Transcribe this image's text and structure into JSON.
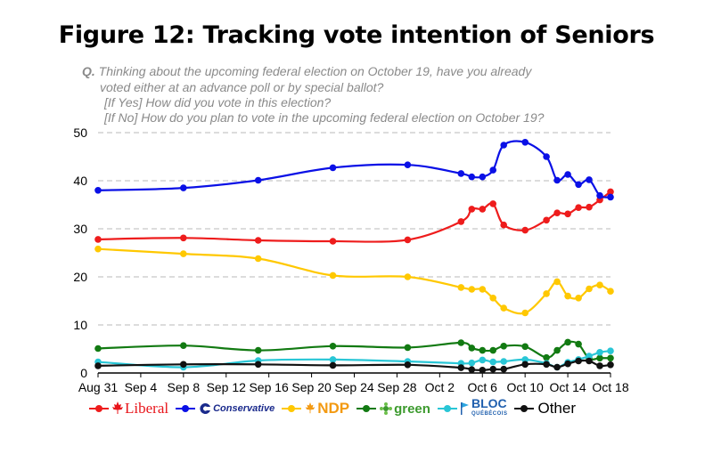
{
  "title": "Figure 12: Tracking vote intention of Seniors",
  "question": {
    "q_label": "Q.",
    "line1": "Thinking about the upcoming federal election on October 19, have you already",
    "line2": "voted either at an advance poll or by special ballot?",
    "line3": "[If Yes] How did you vote in this election?",
    "line4": "[If No] How do you plan to vote in the upcoming federal election on October 19?"
  },
  "legend": {
    "liberal": "Liberal",
    "conservative": "Conservative",
    "ndp": "NDP",
    "green": "green",
    "bloc": "BLOC",
    "bloc_sub": "QUÉBÉCOIS",
    "other": "Other"
  },
  "chart_data": {
    "type": "line",
    "title": "Figure 12: Tracking vote intention of Seniors",
    "xlabel": "",
    "ylabel": "",
    "x_tick_labels": [
      "Aug 31",
      "Sep 4",
      "Sep 8",
      "Sep 12",
      "Sep 16",
      "Sep 20",
      "Sep 24",
      "Sep 28",
      "Oct 2",
      "Oct 6",
      "Oct 10",
      "Oct 14",
      "Oct 18"
    ],
    "x_ticks": [
      "2015-08-31",
      "2015-09-04",
      "2015-09-08",
      "2015-09-12",
      "2015-09-16",
      "2015-09-20",
      "2015-09-24",
      "2015-09-28",
      "2015-10-02",
      "2015-10-06",
      "2015-10-10",
      "2015-10-14",
      "2015-10-18"
    ],
    "x_range": [
      "2015-08-31",
      "2015-10-18"
    ],
    "ylim": [
      0,
      50
    ],
    "y_ticks": [
      0,
      10,
      20,
      30,
      40,
      50
    ],
    "grid": "horizontal dashed",
    "legend_position": "bottom",
    "x": [
      "2015-08-31",
      "2015-09-08",
      "2015-09-15",
      "2015-09-22",
      "2015-09-29",
      "2015-10-04",
      "2015-10-05",
      "2015-10-06",
      "2015-10-07",
      "2015-10-08",
      "2015-10-10",
      "2015-10-12",
      "2015-10-13",
      "2015-10-14",
      "2015-10-15",
      "2015-10-16",
      "2015-10-17",
      "2015-10-18"
    ],
    "series": [
      {
        "name": "Liberal",
        "color": "#ee1c1c",
        "values": [
          27.8,
          28.1,
          27.6,
          27.4,
          27.7,
          31.5,
          34.1,
          34.1,
          35.2,
          30.8,
          29.7,
          31.8,
          33.3,
          33.1,
          34.4,
          34.5,
          36.0,
          37.7
        ]
      },
      {
        "name": "Conservative",
        "color": "#0a10e6",
        "values": [
          38.0,
          38.5,
          40.1,
          42.7,
          43.3,
          41.5,
          40.8,
          40.8,
          42.2,
          47.4,
          48.0,
          45.0,
          40.1,
          41.3,
          39.2,
          40.2,
          36.9,
          36.6
        ]
      },
      {
        "name": "NDP",
        "color": "#ffc800",
        "values": [
          25.8,
          24.8,
          23.8,
          20.3,
          20.0,
          17.8,
          17.4,
          17.4,
          15.6,
          13.5,
          12.5,
          16.5,
          19.0,
          16.0,
          15.6,
          17.5,
          18.3,
          17.0
        ]
      },
      {
        "name": "Green",
        "color": "#127a12",
        "values": [
          5.1,
          5.7,
          4.7,
          5.6,
          5.3,
          6.3,
          5.2,
          4.7,
          4.7,
          5.6,
          5.5,
          3.2,
          4.7,
          6.4,
          6.0,
          3.0,
          3.1,
          3.1
        ]
      },
      {
        "name": "Bloc Québécois",
        "color": "#29c6d6",
        "values": [
          2.3,
          1.2,
          2.6,
          2.8,
          2.4,
          2.0,
          2.1,
          2.7,
          2.3,
          2.4,
          2.8,
          2.0,
          1.2,
          2.2,
          2.8,
          3.5,
          4.3,
          4.6
        ]
      },
      {
        "name": "Other",
        "color": "#111111",
        "values": [
          1.5,
          1.8,
          1.8,
          1.6,
          1.7,
          1.1,
          0.7,
          0.6,
          0.8,
          0.8,
          1.8,
          1.8,
          1.2,
          1.9,
          2.5,
          2.5,
          1.5,
          1.7
        ]
      }
    ]
  }
}
